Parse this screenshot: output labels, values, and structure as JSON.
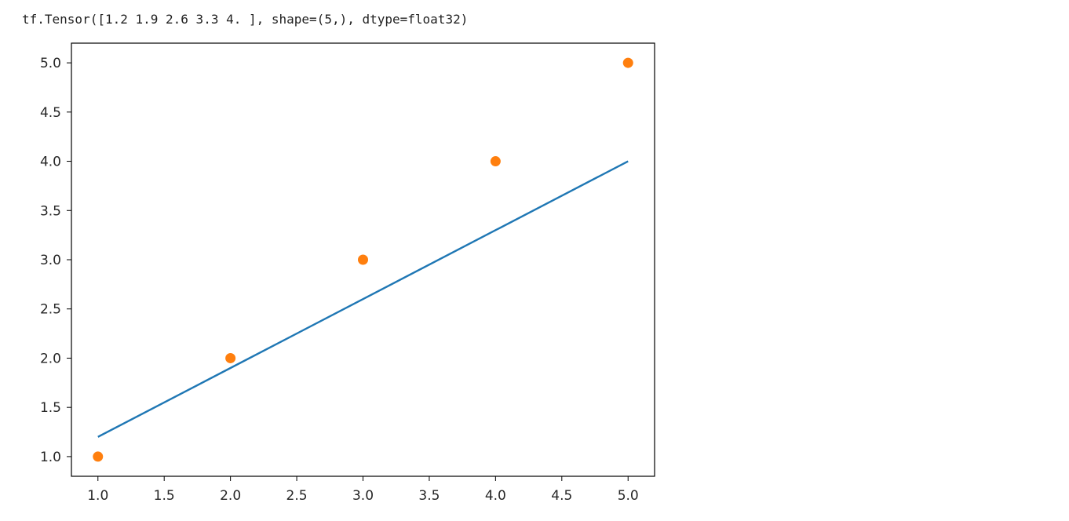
{
  "output": {
    "text": "tf.Tensor([1.2 1.9 2.6 3.3 4. ], shape=(5,), dtype=float32)"
  },
  "chart_data": {
    "type": "scatter",
    "title": "",
    "xlabel": "",
    "ylabel": "",
    "xlim": [
      0.8,
      5.2
    ],
    "ylim": [
      0.8,
      5.2
    ],
    "xticks": [
      1.0,
      1.5,
      2.0,
      2.5,
      3.0,
      3.5,
      4.0,
      4.5,
      5.0
    ],
    "yticks": [
      1.0,
      1.5,
      2.0,
      2.5,
      3.0,
      3.5,
      4.0,
      4.5,
      5.0
    ],
    "xtick_labels": [
      "1.0",
      "1.5",
      "2.0",
      "2.5",
      "3.0",
      "3.5",
      "4.0",
      "4.5",
      "5.0"
    ],
    "ytick_labels": [
      "1.0",
      "1.5",
      "2.0",
      "2.5",
      "3.0",
      "3.5",
      "4.0",
      "4.5",
      "5.0"
    ],
    "grid": false,
    "series": [
      {
        "kind": "line",
        "color": "#1f77b4",
        "x": [
          1,
          2,
          3,
          4,
          5
        ],
        "y": [
          1.2,
          1.9,
          2.6,
          3.3,
          4.0
        ]
      },
      {
        "kind": "scatter",
        "color": "#ff7f0e",
        "x": [
          1,
          2,
          3,
          4,
          5
        ],
        "y": [
          1,
          2,
          3,
          4,
          5
        ]
      }
    ]
  }
}
